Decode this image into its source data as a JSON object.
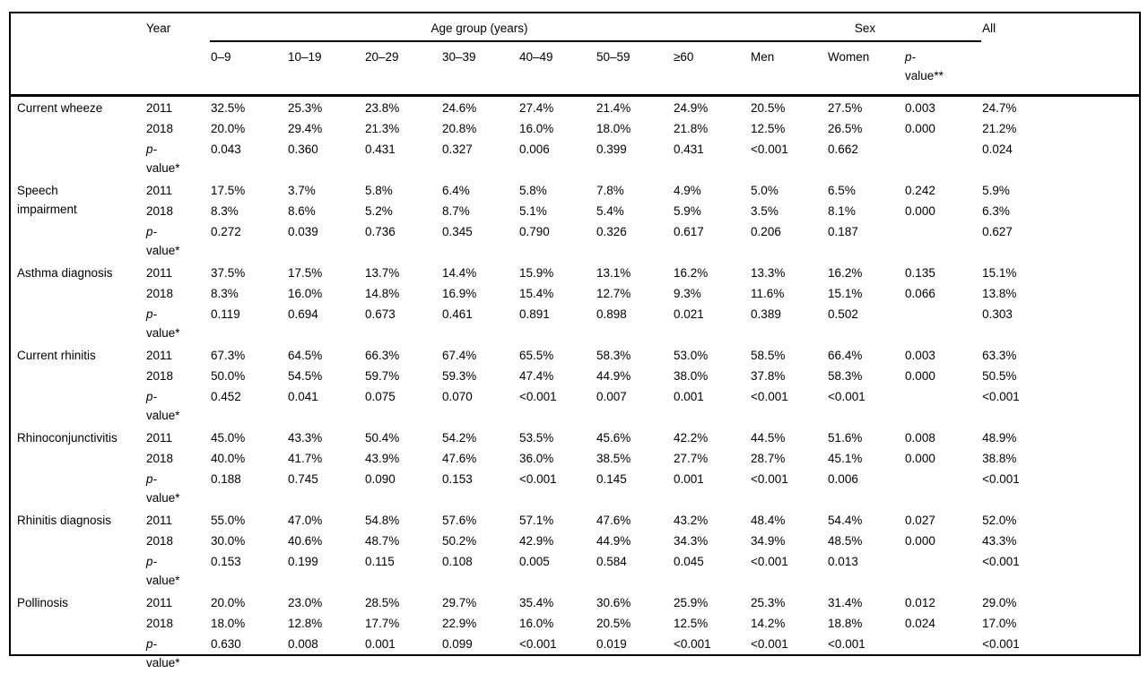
{
  "page": {
    "background": "#ffffff",
    "text_color": "#000000",
    "rule_color": "#000000"
  },
  "table": {
    "header": {
      "year": "Year",
      "age_group": "Age group (years)",
      "sex": "Sex",
      "all": "All",
      "age_columns": [
        "0–9",
        "10–19",
        "20–29",
        "30–39",
        "40–49",
        "50–59",
        "≥60"
      ],
      "men": "Men",
      "women": "Women",
      "p_value_header_lines": [
        "p-",
        "value**"
      ]
    },
    "p_row_label_lines": [
      "p-",
      "value*"
    ],
    "groups": [
      {
        "label": "Current wheeze",
        "rows": [
          {
            "year": "2011",
            "values": [
              "32.5%",
              "25.3%",
              "23.8%",
              "24.6%",
              "27.4%",
              "21.4%",
              "24.9%",
              "20.5%",
              "27.5%",
              "0.003",
              "24.7%"
            ]
          },
          {
            "year": "2018",
            "values": [
              "20.0%",
              "29.4%",
              "21.3%",
              "20.8%",
              "16.0%",
              "18.0%",
              "21.8%",
              "12.5%",
              "26.5%",
              "0.000",
              "21.2%"
            ]
          },
          {
            "year_lines": [
              "p-",
              "value*"
            ],
            "values": [
              "0.043",
              "0.360",
              "0.431",
              "0.327",
              "0.006",
              "0.399",
              "0.431",
              "<0.001",
              "0.662",
              "",
              "0.024"
            ]
          }
        ]
      },
      {
        "label": "Speech\nimpairment",
        "rows": [
          {
            "year": "2011",
            "values": [
              "17.5%",
              "3.7%",
              "5.8%",
              "6.4%",
              "5.8%",
              "7.8%",
              "4.9%",
              "5.0%",
              "6.5%",
              "0.242",
              "5.9%"
            ]
          },
          {
            "year": "2018",
            "values": [
              "8.3%",
              "8.6%",
              "5.2%",
              "8.7%",
              "5.1%",
              "5.4%",
              "5.9%",
              "3.5%",
              "8.1%",
              "0.000",
              "6.3%"
            ]
          },
          {
            "year_lines": [
              "p-",
              "value*"
            ],
            "values": [
              "0.272",
              "0.039",
              "0.736",
              "0.345",
              "0.790",
              "0.326",
              "0.617",
              "0.206",
              "0.187",
              "",
              "0.627"
            ]
          }
        ]
      },
      {
        "label": "Asthma diagnosis",
        "rows": [
          {
            "year": "2011",
            "values": [
              "37.5%",
              "17.5%",
              "13.7%",
              "14.4%",
              "15.9%",
              "13.1%",
              "16.2%",
              "13.3%",
              "16.2%",
              "0.135",
              "15.1%"
            ]
          },
          {
            "year": "2018",
            "values": [
              "8.3%",
              "16.0%",
              "14.8%",
              "16.9%",
              "15.4%",
              "12.7%",
              "9.3%",
              "11.6%",
              "15.1%",
              "0.066",
              "13.8%"
            ]
          },
          {
            "year_lines": [
              "p-",
              "value*"
            ],
            "values": [
              "0.119",
              "0.694",
              "0.673",
              "0.461",
              "0.891",
              "0.898",
              "0.021",
              "0.389",
              "0.502",
              "",
              "0.303"
            ]
          }
        ]
      },
      {
        "label": "Current rhinitis",
        "rows": [
          {
            "year": "2011",
            "values": [
              "67.3%",
              "64.5%",
              "66.3%",
              "67.4%",
              "65.5%",
              "58.3%",
              "53.0%",
              "58.5%",
              "66.4%",
              "0.003",
              "63.3%"
            ]
          },
          {
            "year": "2018",
            "values": [
              "50.0%",
              "54.5%",
              "59.7%",
              "59.3%",
              "47.4%",
              "44.9%",
              "38.0%",
              "37.8%",
              "58.3%",
              "0.000",
              "50.5%"
            ]
          },
          {
            "year_lines": [
              "p-",
              "value*"
            ],
            "values": [
              "0.452",
              "0.041",
              "0.075",
              "0.070",
              "<0.001",
              "0.007",
              "0.001",
              "<0.001",
              "<0.001",
              "",
              "<0.001"
            ]
          }
        ]
      },
      {
        "label": "Rhinoconjunctivitis",
        "rows": [
          {
            "year": "2011",
            "values": [
              "45.0%",
              "43.3%",
              "50.4%",
              "54.2%",
              "53.5%",
              "45.6%",
              "42.2%",
              "44.5%",
              "51.6%",
              "0.008",
              "48.9%"
            ]
          },
          {
            "year": "2018",
            "values": [
              "40.0%",
              "41.7%",
              "43.9%",
              "47.6%",
              "36.0%",
              "38.5%",
              "27.7%",
              "28.7%",
              "45.1%",
              "0.000",
              "38.8%"
            ]
          },
          {
            "year_lines": [
              "p-",
              "value*"
            ],
            "values": [
              "0.188",
              "0.745",
              "0.090",
              "0.153",
              "<0.001",
              "0.145",
              "0.001",
              "<0.001",
              "0.006",
              "",
              "<0.001"
            ]
          }
        ]
      },
      {
        "label": "Rhinitis diagnosis",
        "rows": [
          {
            "year": "2011",
            "values": [
              "55.0%",
              "47.0%",
              "54.8%",
              "57.6%",
              "57.1%",
              "47.6%",
              "43.2%",
              "48.4%",
              "54.4%",
              "0.027",
              "52.0%"
            ]
          },
          {
            "year": "2018",
            "values": [
              "30.0%",
              "40.6%",
              "48.7%",
              "50.2%",
              "42.9%",
              "44.9%",
              "34.3%",
              "34.9%",
              "48.5%",
              "0.000",
              "43.3%"
            ]
          },
          {
            "year_lines": [
              "p-",
              "value*"
            ],
            "values": [
              "0.153",
              "0.199",
              "0.115",
              "0.108",
              "0.005",
              "0.584",
              "0.045",
              "<0.001",
              "0.013",
              "",
              "<0.001"
            ]
          }
        ]
      },
      {
        "label": "Pollinosis",
        "rows": [
          {
            "year": "2011",
            "values": [
              "20.0%",
              "23.0%",
              "28.5%",
              "29.7%",
              "35.4%",
              "30.6%",
              "25.9%",
              "25.3%",
              "31.4%",
              "0.012",
              "29.0%"
            ]
          },
          {
            "year": "2018",
            "values": [
              "18.0%",
              "12.8%",
              "17.7%",
              "22.9%",
              "16.0%",
              "20.5%",
              "12.5%",
              "14.2%",
              "18.8%",
              "0.024",
              "17.0%"
            ]
          },
          {
            "year_lines": [
              "p-",
              "value*"
            ],
            "values": [
              "0.630",
              "0.008",
              "0.001",
              "0.099",
              "<0.001",
              "0.019",
              "<0.001",
              "<0.001",
              "<0.001",
              "",
              "<0.001"
            ]
          }
        ]
      }
    ]
  }
}
